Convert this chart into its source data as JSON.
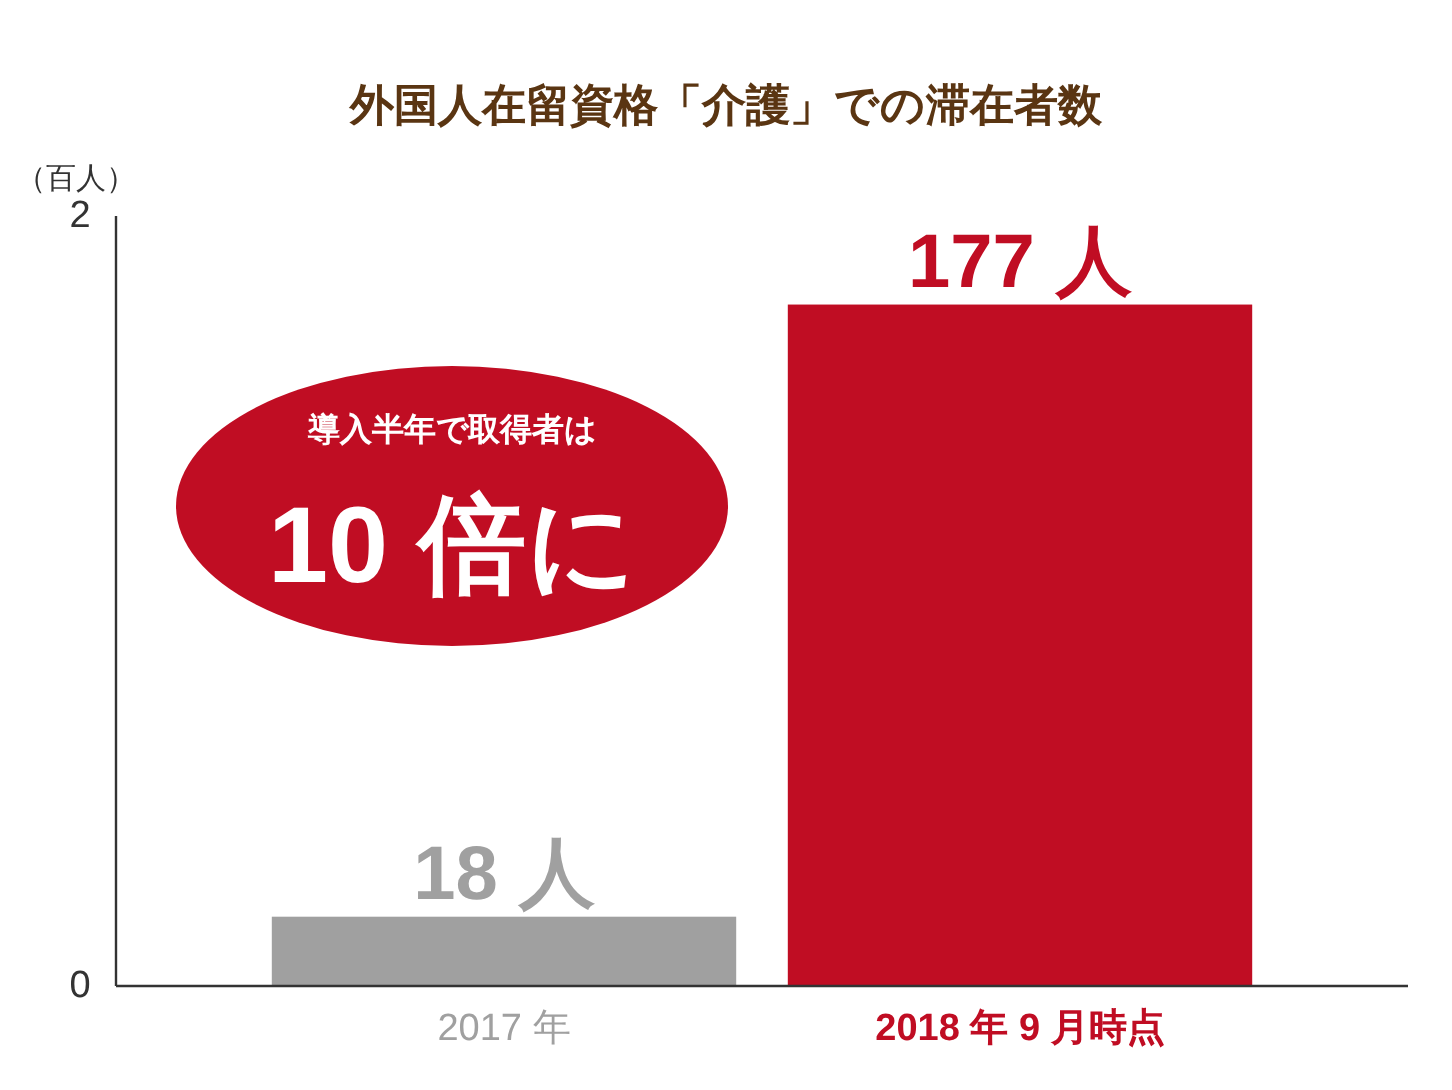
{
  "chart_data": {
    "type": "bar",
    "title": "外国人在留資格「介護」での滞在者数",
    "ylabel": "（百人）",
    "categories": [
      "2017 年",
      "2018 年 9 月時点"
    ],
    "values": [
      0.18,
      1.77
    ],
    "colors": [
      "#a0a0a0",
      "#c00d23"
    ],
    "ylim": [
      0,
      2
    ],
    "yticks": [
      0,
      2
    ],
    "annotations": [
      {
        "text": "18 人",
        "x": "2017 年",
        "y": 0.18
      },
      {
        "text": "177 人",
        "x": "2018 年 9 月時点",
        "y": 1.77
      },
      "導入半年で取得者は",
      "10 倍に"
    ]
  }
}
